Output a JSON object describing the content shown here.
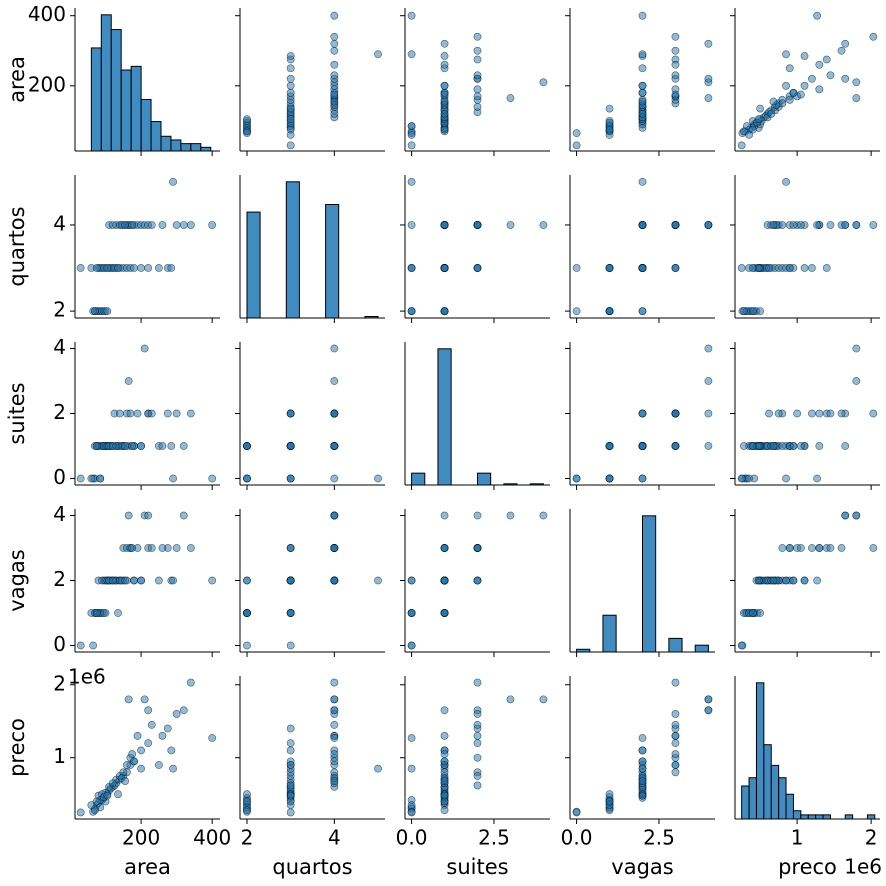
{
  "chart_data": {
    "type": "pairplot",
    "variables": [
      "area",
      "quartos",
      "suites",
      "vagas",
      "preco"
    ],
    "color": "#1f77b4",
    "offset_label": "1e6",
    "axes": [
      {
        "lim": [
          14,
          422
        ],
        "xticks": [
          200,
          400
        ],
        "yticks": [
          200,
          400
        ]
      },
      {
        "lim": [
          1.84,
          5.16
        ],
        "xticks": [
          2,
          4
        ],
        "yticks": [
          2,
          4
        ]
      },
      {
        "lim": [
          -0.2,
          4.2
        ],
        "xticks": [
          {
            "value": 0,
            "label": "0.0"
          },
          {
            "value": 2.5,
            "label": "2.5"
          }
        ],
        "yticks": [
          0,
          2,
          4
        ]
      },
      {
        "lim": [
          -0.2,
          4.2
        ],
        "xticks": [
          {
            "value": 0,
            "label": "0.0"
          },
          {
            "value": 2.5,
            "label": "2.5"
          }
        ],
        "yticks": [
          0,
          2,
          4
        ]
      },
      {
        "lim": [
          160000,
          2120000
        ],
        "xticks": [
          {
            "value": 1000000,
            "label": "1"
          },
          {
            "value": 2000000,
            "label": "2"
          }
        ],
        "yticks": [
          {
            "value": 1000000,
            "label": "1"
          },
          {
            "value": 2000000,
            "label": "2"
          }
        ]
      }
    ],
    "hist": [
      {
        "bins": [
          60,
          88,
          116,
          144,
          172,
          200,
          228,
          256,
          284,
          312,
          340,
          368,
          396
        ],
        "counts": [
          28,
          37,
          33,
          22,
          23,
          14,
          8,
          4,
          3,
          2,
          2,
          1
        ]
      },
      {
        "bins": [
          2,
          2.3,
          2.6,
          2.9,
          3.2,
          3.5,
          3.8,
          4.1,
          4.4,
          4.7,
          5.0
        ],
        "counts": [
          70,
          0,
          0,
          90,
          0,
          0,
          75,
          0,
          0,
          1
        ]
      },
      {
        "bins": [
          0,
          0.4,
          0.8,
          1.2,
          1.6,
          2.0,
          2.4,
          2.8,
          3.2,
          3.6,
          4.0
        ],
        "counts": [
          10,
          0,
          115,
          0,
          0,
          10,
          0,
          1,
          0,
          1
        ]
      },
      {
        "bins": [
          0,
          0.4,
          0.8,
          1.2,
          1.6,
          2.0,
          2.4,
          2.8,
          3.2,
          3.6,
          4.0
        ],
        "counts": [
          2,
          0,
          27,
          0,
          0,
          100,
          0,
          10,
          0,
          5
        ]
      },
      {
        "bins": [
          250000,
          350000,
          450000,
          550000,
          650000,
          750000,
          850000,
          950000,
          1050000,
          1150000,
          1250000,
          1350000,
          1450000,
          1550000,
          1650000,
          1750000,
          1850000,
          1950000,
          2050000
        ],
        "counts": [
          8,
          10,
          33,
          18,
          13,
          10,
          6,
          2,
          1,
          1,
          1,
          1,
          0,
          0,
          1,
          0,
          0,
          1
        ]
      }
    ],
    "rows": [
      [
        70,
        2,
        0,
        1,
        300000
      ],
      [
        75,
        2,
        1,
        1,
        350000
      ],
      [
        80,
        2,
        1,
        1,
        380000
      ],
      [
        85,
        2,
        0,
        1,
        320000
      ],
      [
        90,
        2,
        1,
        1,
        420000
      ],
      [
        95,
        2,
        1,
        2,
        450000
      ],
      [
        100,
        2,
        1,
        1,
        400000
      ],
      [
        65,
        2,
        0,
        0,
        260000
      ],
      [
        70,
        2,
        1,
        1,
        280000
      ],
      [
        105,
        2,
        1,
        2,
        500000
      ],
      [
        80,
        3,
        1,
        2,
        480000
      ],
      [
        90,
        3,
        1,
        2,
        500000
      ],
      [
        100,
        3,
        1,
        2,
        520000
      ],
      [
        110,
        3,
        1,
        2,
        550000
      ],
      [
        120,
        3,
        1,
        2,
        600000
      ],
      [
        130,
        3,
        1,
        2,
        650000
      ],
      [
        85,
        3,
        0,
        1,
        420000
      ],
      [
        95,
        3,
        1,
        1,
        460000
      ],
      [
        140,
        3,
        1,
        2,
        700000
      ],
      [
        150,
        3,
        1,
        2,
        750000
      ],
      [
        160,
        3,
        2,
        2,
        800000
      ],
      [
        170,
        3,
        1,
        3,
        900000
      ],
      [
        180,
        3,
        1,
        2,
        950000
      ],
      [
        200,
        3,
        1,
        2,
        850000
      ],
      [
        220,
        3,
        2,
        3,
        1200000
      ],
      [
        250,
        3,
        1,
        2,
        900000
      ],
      [
        275,
        3,
        2,
        3,
        1400000
      ],
      [
        285,
        3,
        1,
        2,
        1100000
      ],
      [
        60,
        3,
        0,
        1,
        350000
      ],
      [
        75,
        3,
        1,
        1,
        400000
      ],
      [
        115,
        3,
        1,
        2,
        580000
      ],
      [
        125,
        3,
        2,
        2,
        620000
      ],
      [
        135,
        3,
        1,
        1,
        500000
      ],
      [
        30,
        3,
        0,
        0,
        250000
      ],
      [
        105,
        3,
        1,
        2,
        480000
      ],
      [
        110,
        4,
        1,
        2,
        600000
      ],
      [
        130,
        4,
        1,
        2,
        700000
      ],
      [
        140,
        4,
        2,
        2,
        750000
      ],
      [
        150,
        4,
        1,
        3,
        800000
      ],
      [
        160,
        4,
        1,
        3,
        900000
      ],
      [
        165,
        4,
        3,
        4,
        1800000
      ],
      [
        170,
        4,
        2,
        3,
        1000000
      ],
      [
        180,
        4,
        1,
        2,
        950000
      ],
      [
        190,
        4,
        2,
        3,
        1300000
      ],
      [
        200,
        4,
        1,
        2,
        1100000
      ],
      [
        210,
        4,
        4,
        4,
        1800000
      ],
      [
        220,
        4,
        2,
        4,
        1650000
      ],
      [
        260,
        4,
        1,
        3,
        1300000
      ],
      [
        300,
        4,
        2,
        3,
        1600000
      ],
      [
        320,
        4,
        1,
        4,
        1650000
      ],
      [
        340,
        4,
        2,
        3,
        2030000
      ],
      [
        400,
        4,
        0,
        2,
        1270000
      ],
      [
        120,
        4,
        1,
        2,
        650000
      ],
      [
        145,
        4,
        1,
        2,
        720000
      ],
      [
        155,
        4,
        1,
        2,
        680000
      ],
      [
        175,
        4,
        1,
        3,
        1050000
      ],
      [
        230,
        4,
        2,
        3,
        1450000
      ],
      [
        290,
        5,
        0,
        2,
        850000
      ]
    ]
  }
}
